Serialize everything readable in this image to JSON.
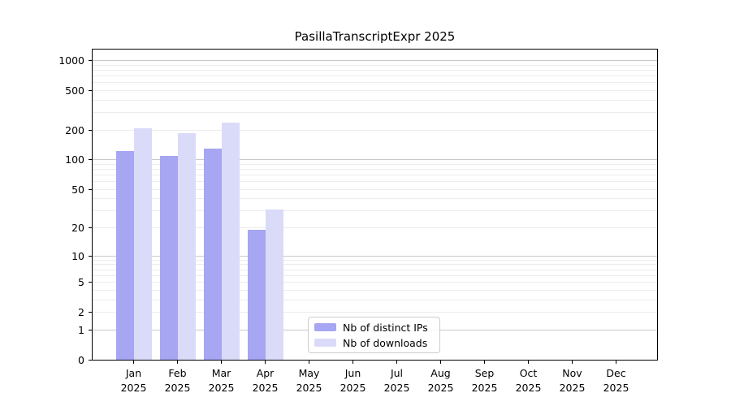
{
  "title": "PasillaTranscriptExpr 2025",
  "chart_data": {
    "type": "bar",
    "title": "PasillaTranscriptExpr 2025",
    "categories": [
      "Jan",
      "Feb",
      "Mar",
      "Apr",
      "May",
      "Jun",
      "Jul",
      "Aug",
      "Sep",
      "Oct",
      "Nov",
      "Dec"
    ],
    "x_tick_second_line": "2025",
    "series": [
      {
        "name": "Nb of distinct IPs",
        "color": "#a6a6f2",
        "values": [
          122,
          110,
          130,
          19,
          0,
          0,
          0,
          0,
          0,
          0,
          0,
          0
        ]
      },
      {
        "name": "Nb of downloads",
        "color": "#dadaf9",
        "values": [
          210,
          185,
          238,
          31,
          0,
          0,
          0,
          0,
          0,
          0,
          0,
          0
        ]
      }
    ],
    "yscale": "log1p",
    "ylim": [
      0,
      1287
    ],
    "yticks": [
      0,
      1,
      2,
      5,
      10,
      20,
      50,
      100,
      200,
      500,
      1000
    ],
    "major_gridlines": [
      1,
      10,
      100,
      1000
    ],
    "minor_gridlines": [
      2,
      3,
      4,
      5,
      6,
      7,
      8,
      9,
      20,
      30,
      40,
      50,
      60,
      70,
      80,
      90,
      200,
      300,
      400,
      500,
      600,
      700,
      800,
      900
    ],
    "grid": true,
    "legend_position": "lower-center-right"
  },
  "legend": {
    "items": [
      {
        "label": "Nb of distinct IPs",
        "color": "#a6a6f2"
      },
      {
        "label": "Nb of downloads",
        "color": "#dadaf9"
      }
    ]
  },
  "colors": {
    "bar_distinct_ips": "#a6a6f2",
    "bar_downloads": "#dadaf9",
    "grid_major": "#c9c9c9",
    "grid_minor": "#ececec",
    "axis": "#000000",
    "legend_border": "#cccccc",
    "background": "#ffffff"
  }
}
